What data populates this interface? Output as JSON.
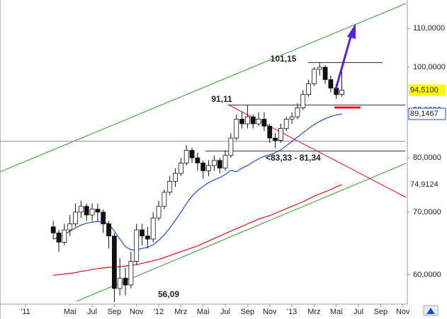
{
  "chart_data": {
    "type": "candlestick",
    "yscale": "log",
    "ylim": [
      56,
      118
    ],
    "yticks": [
      {
        "value": 60,
        "label": "60,0000"
      },
      {
        "value": 70,
        "label": "70,0000"
      },
      {
        "value": 80,
        "label": "80,0000"
      },
      {
        "value": 90,
        "label": "90,0000"
      },
      {
        "value": 100,
        "label": "100,0000"
      },
      {
        "value": 110,
        "label": "110,0000"
      }
    ],
    "xlim": [
      -2.3,
      34.4
    ],
    "xticks": [
      {
        "value": 0,
        "label": "'11"
      },
      {
        "value": 4,
        "label": "Mai"
      },
      {
        "value": 6,
        "label": "Jul"
      },
      {
        "value": 8,
        "label": "Sep"
      },
      {
        "value": 10,
        "label": "Nov"
      },
      {
        "value": 12,
        "label": "'12"
      },
      {
        "value": 14,
        "label": "Mrz"
      },
      {
        "value": 16,
        "label": "Mai"
      },
      {
        "value": 18,
        "label": "Jul"
      },
      {
        "value": 20,
        "label": "Sep"
      },
      {
        "value": 22,
        "label": "Nov"
      },
      {
        "value": 24,
        "label": "'13"
      },
      {
        "value": 26,
        "label": "Mrz"
      },
      {
        "value": 28,
        "label": "Mai"
      },
      {
        "value": 30,
        "label": "Jul"
      },
      {
        "value": 32,
        "label": "Sep"
      },
      {
        "value": 34,
        "label": "Nov"
      }
    ],
    "x": [
      2.5,
      3,
      3.5,
      4,
      4.5,
      5,
      5.5,
      6,
      6.5,
      7,
      7.5,
      8,
      8.5,
      9,
      9.5,
      10,
      10.5,
      11,
      11.5,
      12,
      12.5,
      13,
      13.5,
      14,
      14.5,
      15,
      15.5,
      16,
      16.5,
      17,
      17.5,
      18,
      18.5,
      19,
      19.5,
      20,
      20.5,
      21,
      21.5,
      22,
      22.5,
      23,
      23.5,
      24,
      24.5,
      25,
      25.5,
      26,
      26.5,
      27,
      27.5,
      28,
      28.5
    ],
    "ohlc": [
      [
        67.5,
        68.5,
        65.5,
        66.5
      ],
      [
        66.5,
        67,
        63.5,
        65
      ],
      [
        65,
        68,
        64.5,
        67
      ],
      [
        67,
        69.5,
        66,
        68
      ],
      [
        68,
        71.5,
        67.5,
        70
      ],
      [
        70,
        72,
        69,
        71
      ],
      [
        71,
        71.5,
        68.5,
        69.5
      ],
      [
        69.5,
        71.5,
        68.5,
        70.5
      ],
      [
        70.5,
        71.5,
        68.5,
        70
      ],
      [
        70,
        70.5,
        66.5,
        68
      ],
      [
        68,
        68.5,
        64,
        66
      ],
      [
        66,
        66.5,
        56.09,
        58
      ],
      [
        58,
        62.5,
        57,
        59.5
      ],
      [
        59.5,
        61,
        57,
        58.5
      ],
      [
        58.5,
        63.5,
        58,
        62
      ],
      [
        62,
        68,
        61.5,
        67
      ],
      [
        67,
        68,
        64.5,
        66
      ],
      [
        66,
        67.5,
        64,
        65.5
      ],
      [
        65.5,
        70,
        65,
        69
      ],
      [
        69,
        72,
        68.5,
        71
      ],
      [
        71,
        74,
        70.5,
        73.5
      ],
      [
        73.5,
        76.5,
        73,
        75.5
      ],
      [
        75.5,
        78,
        74.5,
        77
      ],
      [
        77,
        80,
        76.5,
        79
      ],
      [
        79,
        82.5,
        78.5,
        81.5
      ],
      [
        81.5,
        82,
        79,
        80
      ],
      [
        80,
        81,
        77.5,
        79
      ],
      [
        79,
        79.5,
        76,
        77.5
      ],
      [
        77.5,
        79.5,
        76.5,
        78.5
      ],
      [
        78.5,
        80.5,
        77.5,
        79.5
      ],
      [
        79.5,
        80,
        77,
        78
      ],
      [
        78,
        81.5,
        77.5,
        80.5
      ],
      [
        80.5,
        85,
        80,
        84
      ],
      [
        84,
        89,
        83.5,
        88
      ],
      [
        88,
        89.5,
        86,
        87
      ],
      [
        87,
        91.11,
        86,
        88.5
      ],
      [
        88.5,
        89,
        86,
        87
      ],
      [
        87,
        89.5,
        86.5,
        88
      ],
      [
        88,
        89.5,
        85.5,
        86.5
      ],
      [
        86.5,
        87,
        83,
        84
      ],
      [
        84,
        85,
        82,
        83.5
      ],
      [
        83.5,
        87,
        83,
        86
      ],
      [
        86,
        88.5,
        85.5,
        88
      ],
      [
        88,
        89.5,
        87,
        88.5
      ],
      [
        88.5,
        91.5,
        88,
        90.5
      ],
      [
        90.5,
        94.5,
        90,
        93.5
      ],
      [
        93.5,
        97,
        93,
        96
      ],
      [
        96,
        100,
        95.5,
        99.5
      ],
      [
        99.5,
        101.15,
        98,
        100
      ],
      [
        100,
        100.5,
        96,
        97
      ],
      [
        97,
        98,
        94,
        95
      ],
      [
        95,
        96,
        92.5,
        93.5
      ],
      [
        93.5,
        99,
        93,
        94.51
      ]
    ],
    "close_label": "94,5100",
    "moving_averages": [
      {
        "color": "#1f4fbf",
        "end_label": "89,1467",
        "values": [
          65.5,
          65.8,
          66.2,
          66.8,
          67.3,
          67.8,
          68.1,
          68.3,
          68.4,
          68.3,
          68,
          66.8,
          65.5,
          64.3,
          63.8,
          63.8,
          64,
          64.2,
          64.6,
          65.3,
          66.2,
          67.3,
          68.6,
          70,
          71.5,
          72.8,
          73.8,
          74.6,
          75.3,
          75.8,
          76.2,
          76.8,
          77.6,
          77.3,
          78,
          78.5,
          79.2,
          79.8,
          80.3,
          80.6,
          81,
          81.6,
          82.4,
          83.3,
          84.2,
          85.1,
          86,
          86.8,
          87.5,
          88.1,
          88.6,
          88.9,
          89.1467
        ]
      },
      {
        "color": "#e0101a",
        "end_label": "74,9124",
        "values": [
          59.9,
          60,
          60.1,
          60.2,
          60.3,
          60.5,
          60.6,
          60.8,
          60.9,
          61,
          61.1,
          61.1,
          61.2,
          61.3,
          61.4,
          61.5,
          61.7,
          61.9,
          62.1,
          62.3,
          62.6,
          62.9,
          63.2,
          63.5,
          63.8,
          64.1,
          64.4,
          64.8,
          65.2,
          65.6,
          66,
          66.4,
          66.8,
          67.2,
          67.6,
          68,
          68.4,
          68.8,
          69.1,
          69.4,
          69.8,
          70.2,
          70.6,
          71,
          71.4,
          71.8,
          72.3,
          72.8,
          73.2,
          73.6,
          74,
          74.5,
          74.9124
        ]
      }
    ],
    "annotations": [
      {
        "text": "101,15",
        "values": [
          101.15
        ]
      },
      {
        "text": "91,11",
        "values": [
          91.11
        ]
      },
      {
        "text": "56,09",
        "values": [
          56.09
        ]
      },
      {
        "text": "<83,33 - 81,34",
        "values": [
          83.33,
          81.34
        ]
      }
    ]
  }
}
